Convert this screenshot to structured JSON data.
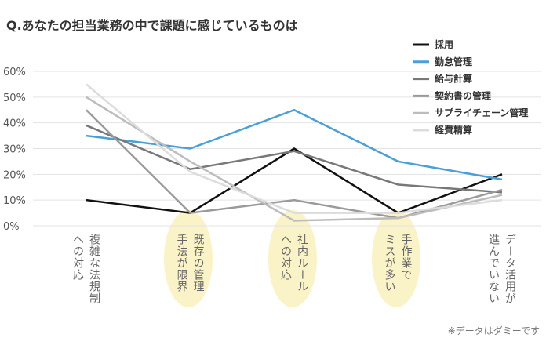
{
  "chart_data": {
    "type": "line",
    "title": "Q.あなたの担当業務の中で課題に感じているものは",
    "note": "※データはダミーです",
    "categories": [
      [
        "複雑な法規制",
        "への対応"
      ],
      [
        "既存の管理",
        "手法が限界"
      ],
      [
        "社内ルール",
        "への対応"
      ],
      [
        "手作業で",
        "ミスが多い"
      ],
      [
        "データ活用が",
        "進んでいない"
      ]
    ],
    "series": [
      {
        "name": "採用",
        "color": "#111111",
        "values": [
          10,
          5,
          30,
          5,
          20
        ]
      },
      {
        "name": "勤怠管理",
        "color": "#4a9fd8",
        "values": [
          35,
          30,
          45,
          25,
          18
        ]
      },
      {
        "name": "給与計算",
        "color": "#787878",
        "values": [
          39,
          22,
          29,
          16,
          13
        ]
      },
      {
        "name": "契約書の管理",
        "color": "#9a9a9a",
        "values": [
          45,
          5,
          10,
          3,
          14
        ]
      },
      {
        "name": "サプライチェーン管理",
        "color": "#bcbcbc",
        "values": [
          50,
          25,
          2,
          3,
          12
        ]
      },
      {
        "name": "経費精算",
        "color": "#dcdcdc",
        "values": [
          55,
          21,
          5,
          5,
          10
        ]
      }
    ],
    "ylim": [
      0,
      60
    ],
    "yticks": [
      {
        "value": 0,
        "label": "0%"
      },
      {
        "value": 10,
        "label": "10%"
      },
      {
        "value": 20,
        "label": "20%"
      },
      {
        "value": 30,
        "label": "30%"
      },
      {
        "value": 40,
        "label": "40%"
      },
      {
        "value": 50,
        "label": "50%"
      },
      {
        "value": 60,
        "label": "60%"
      }
    ],
    "grid": true
  }
}
